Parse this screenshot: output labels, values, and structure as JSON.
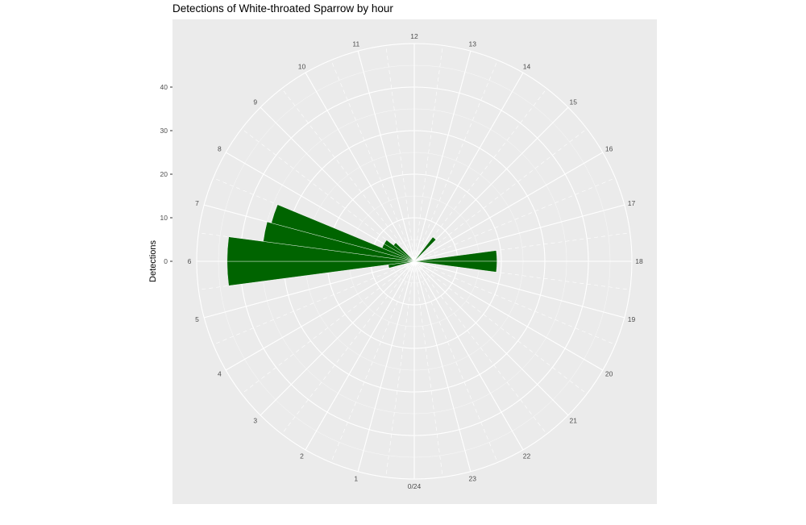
{
  "chart_data": {
    "type": "bar",
    "coord": "polar",
    "title": "Detections of White-throated Sparrow by hour",
    "xlabel": "",
    "ylabel": "Detections",
    "ylim": [
      0,
      50
    ],
    "y_ticks": [
      0,
      10,
      20,
      30,
      40
    ],
    "y_tick_labels": [
      "0",
      "10",
      "20",
      "30",
      "40"
    ],
    "hour_labels": [
      "0/24",
      "1",
      "2",
      "3",
      "4",
      "5",
      "6",
      "7",
      "8",
      "9",
      "10",
      "11",
      "12",
      "13",
      "14",
      "15",
      "16",
      "17",
      "18",
      "19",
      "20",
      "21",
      "22",
      "23"
    ],
    "bars": [
      {
        "start": 5.5,
        "end": 6.0,
        "value": 43
      },
      {
        "start": 6.0,
        "end": 6.5,
        "value": 43
      },
      {
        "start": 6.5,
        "end": 7.0,
        "value": 35
      },
      {
        "start": 7.0,
        "end": 7.5,
        "value": 34
      },
      {
        "start": 7.5,
        "end": 8.0,
        "value": 8
      },
      {
        "start": 8.0,
        "end": 8.5,
        "value": 8
      },
      {
        "start": 8.5,
        "end": 9.0,
        "value": 6
      },
      {
        "start": 14.5,
        "end": 15.0,
        "value": 7
      },
      {
        "start": 17.5,
        "end": 18.0,
        "value": 19
      },
      {
        "start": 18.0,
        "end": 18.5,
        "value": 19
      },
      {
        "start": 5.0,
        "end": 5.5,
        "value": 6
      }
    ],
    "grid": true,
    "colors": {
      "bar": "#006400",
      "panel": "#ebebeb",
      "grid": "#ffffff",
      "text": "#4d4d4d"
    }
  }
}
